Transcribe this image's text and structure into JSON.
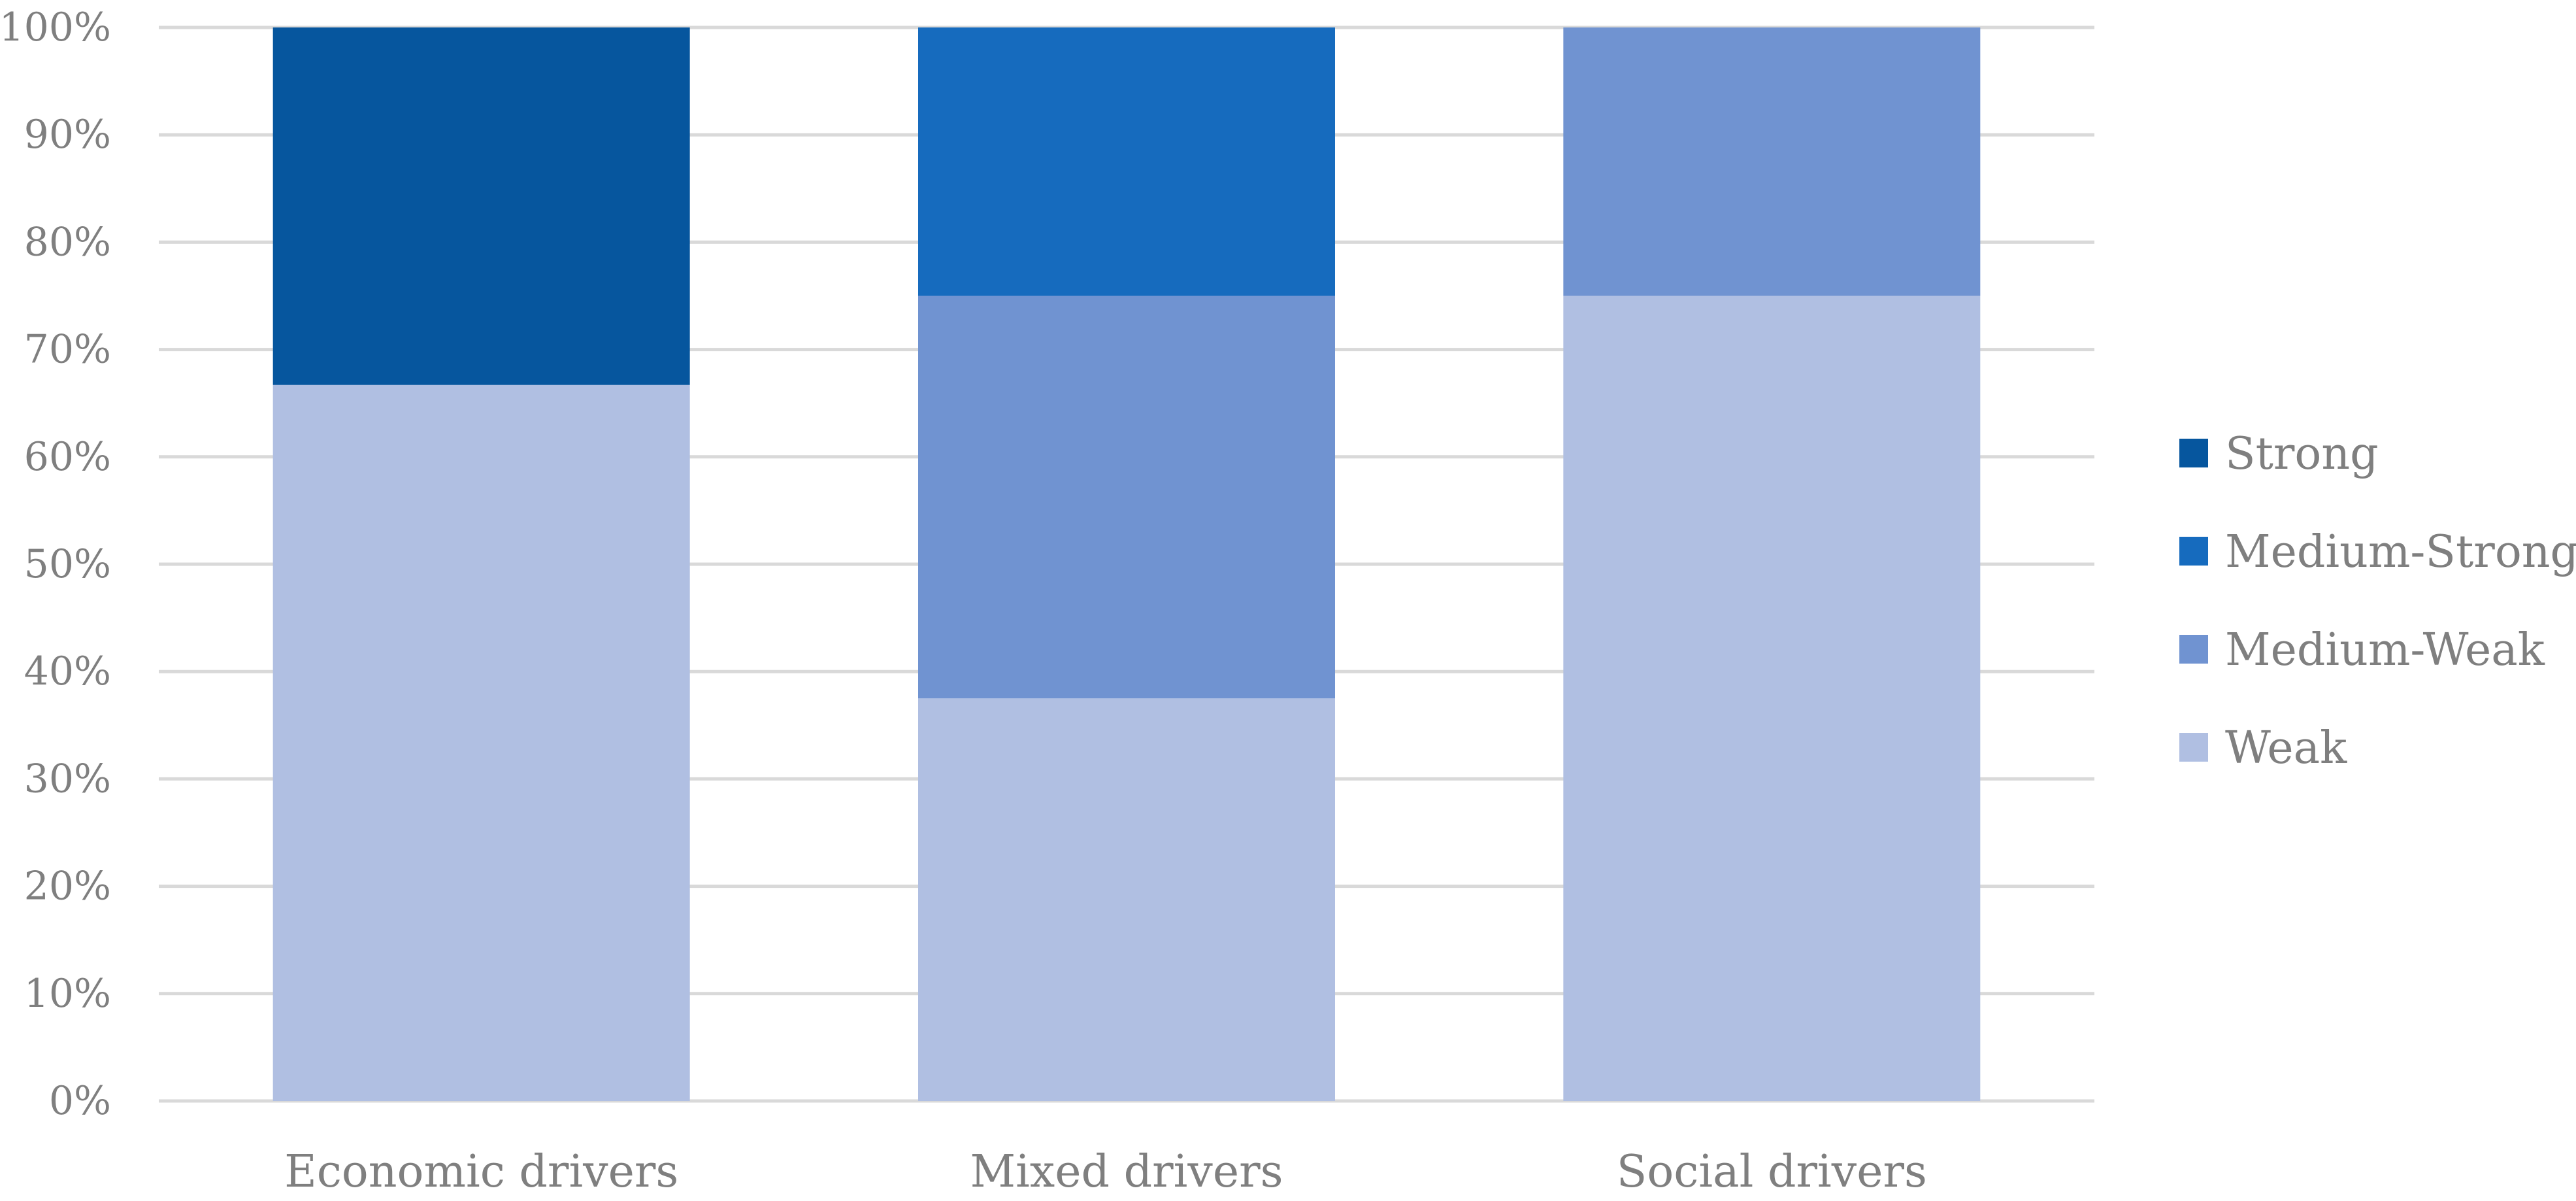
{
  "chart_data": {
    "type": "bar",
    "stacked": true,
    "percent": true,
    "title": "",
    "xlabel": "",
    "ylabel": "",
    "ylim": [
      0,
      100
    ],
    "y_ticks": [
      "0%",
      "10%",
      "20%",
      "30%",
      "40%",
      "50%",
      "60%",
      "70%",
      "80%",
      "90%",
      "100%"
    ],
    "grid": true,
    "legend_position": "right",
    "categories": [
      "Economic drivers",
      "Mixed drivers",
      "Social drivers"
    ],
    "series": [
      {
        "name": "Weak",
        "color": "#B0BFE2",
        "values": [
          66.7,
          37.5,
          75.0
        ]
      },
      {
        "name": "Medium-Weak",
        "color": "#7093D1",
        "values": [
          0,
          37.5,
          25.0
        ]
      },
      {
        "name": "Medium-Strong",
        "color": "#166BBE",
        "values": [
          0,
          25.0,
          0
        ]
      },
      {
        "name": "Strong",
        "color": "#06569E",
        "values": [
          33.3,
          0,
          0
        ]
      }
    ],
    "legend_order": [
      "Strong",
      "Medium-Strong",
      "Medium-Weak",
      "Weak"
    ]
  }
}
